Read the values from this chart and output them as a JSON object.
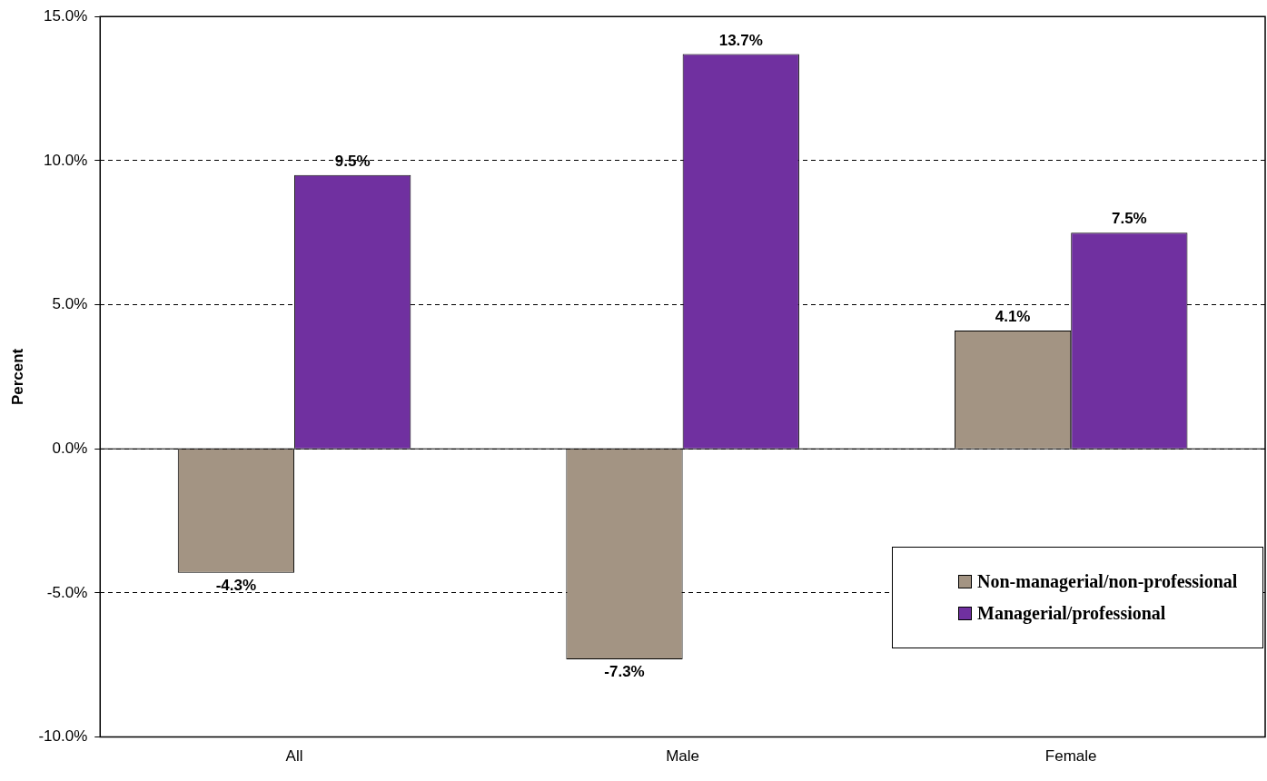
{
  "chart_data": {
    "type": "bar",
    "ylabel": "Percent",
    "categories": [
      "All",
      "Male",
      "Female"
    ],
    "series": [
      {
        "name": "Non-managerial/non-professional",
        "color": "#a39483",
        "values": [
          -4.3,
          -7.3,
          4.1
        ],
        "value_labels": [
          "-4.3%",
          "-7.3%",
          "4.1%"
        ]
      },
      {
        "name": "Managerial/professional",
        "color": "#7030a0",
        "values": [
          9.5,
          13.7,
          7.5
        ],
        "value_labels": [
          "9.5%",
          "13.7%",
          "7.5%"
        ]
      }
    ],
    "ylim": [
      -10,
      15
    ],
    "yticks": [
      {
        "value": -10,
        "label": "-10.0%"
      },
      {
        "value": -5,
        "label": "-5.0%"
      },
      {
        "value": 0,
        "label": "0.0%"
      },
      {
        "value": 5,
        "label": "5.0%"
      },
      {
        "value": 10,
        "label": "10.0%"
      },
      {
        "value": 15,
        "label": "15.0%"
      }
    ],
    "grid": "y",
    "legend": "bottom right"
  }
}
